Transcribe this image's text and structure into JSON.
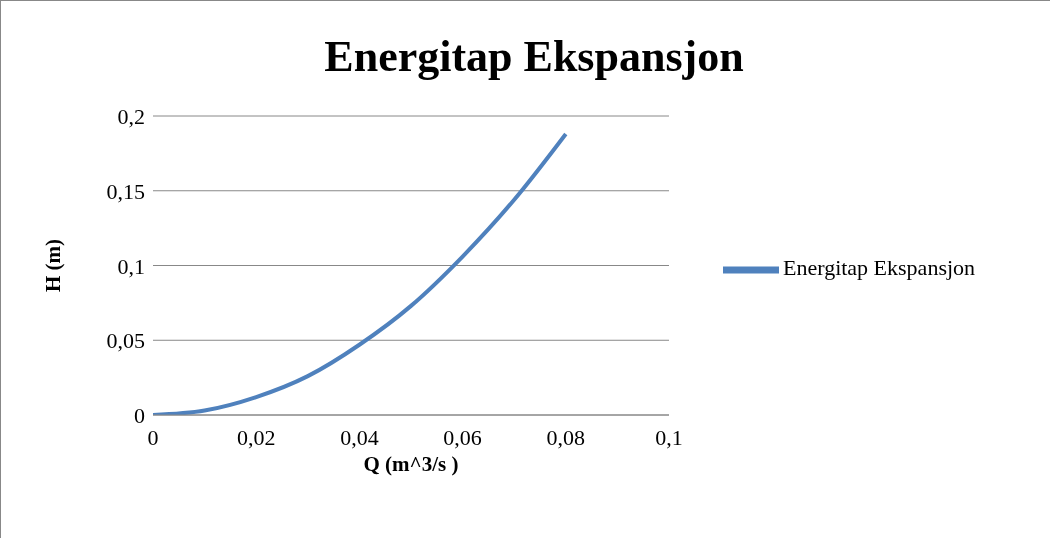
{
  "chart_data": {
    "type": "line",
    "title": "Energitap Ekspansjon",
    "xlabel": "Q (m^3/s )",
    "ylabel": "H (m)",
    "x": [
      0,
      0.01,
      0.02,
      0.03,
      0.04,
      0.05,
      0.06,
      0.07,
      0.08
    ],
    "series": [
      {
        "name": "Energitap Ekspansjon",
        "color": "#4f81bd",
        "values": [
          0,
          0.003,
          0.012,
          0.026,
          0.047,
          0.073,
          0.106,
          0.144,
          0.188
        ]
      }
    ],
    "xlim": [
      0,
      0.1
    ],
    "xticks": [
      0,
      {
        "value": 0.02,
        "label": "0,02"
      },
      {
        "value": 0.04,
        "label": "0,04"
      },
      {
        "value": 0.06,
        "label": "0,06"
      },
      {
        "value": 0.08,
        "label": "0,08"
      },
      {
        "value": 0.1,
        "label": "0,1"
      }
    ],
    "ylim": [
      0,
      0.2
    ],
    "yticks": [
      0,
      {
        "value": 0.05,
        "label": "0,05"
      },
      {
        "value": 0.1,
        "label": "0,1"
      },
      {
        "value": 0.15,
        "label": "0,15"
      },
      {
        "value": 0.2,
        "label": "0,2"
      }
    ],
    "grid": "y",
    "legend": "right",
    "marker": "none",
    "line_style": "solid"
  }
}
